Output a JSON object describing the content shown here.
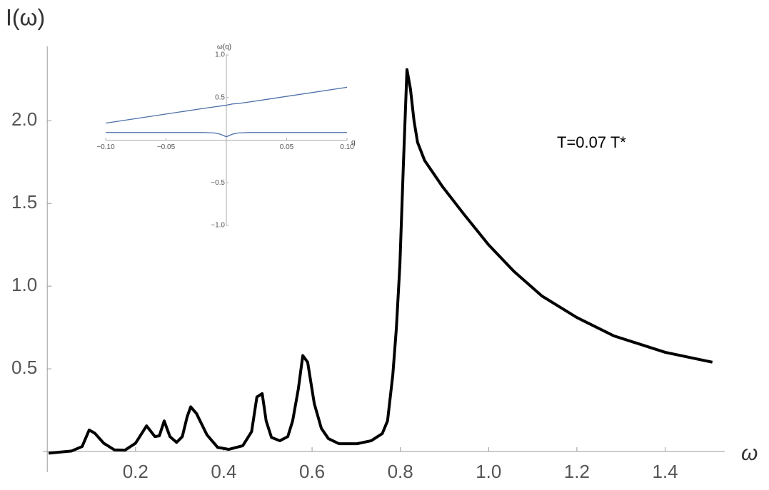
{
  "chart_data": [
    {
      "type": "line",
      "y_label": "I(ω)",
      "x_label": "ω",
      "annotation": "T=0.07 T*",
      "xlim": [
        -0.01,
        1.535
      ],
      "ylim": [
        -0.125,
        2.45
      ],
      "xticks": [
        0.2,
        0.4,
        0.6,
        0.8,
        {
          "value": 1.0,
          "label": "1.0"
        },
        1.2,
        1.4
      ],
      "yticks": [
        0.5,
        {
          "value": 1.0,
          "label": "1.0"
        },
        1.5,
        {
          "value": 2.0,
          "label": "2.0"
        }
      ],
      "color": "#000000",
      "x": [
        0.003,
        0.055,
        0.079,
        0.095,
        0.108,
        0.128,
        0.152,
        0.176,
        0.2,
        0.225,
        0.244,
        0.254,
        0.265,
        0.278,
        0.293,
        0.306,
        0.317,
        0.325,
        0.338,
        0.362,
        0.386,
        0.411,
        0.443,
        0.463,
        0.475,
        0.487,
        0.496,
        0.508,
        0.527,
        0.545,
        0.556,
        0.569,
        0.579,
        0.59,
        0.605,
        0.621,
        0.637,
        0.661,
        0.702,
        0.734,
        0.759,
        0.771,
        0.783,
        0.791,
        0.799,
        0.807,
        0.815,
        0.823,
        0.831,
        0.839,
        0.855,
        0.896,
        0.944,
        1.0,
        1.057,
        1.121,
        1.2,
        1.283,
        1.4,
        1.507
      ],
      "values": [
        -0.01,
        0.003,
        0.03,
        0.13,
        0.11,
        0.05,
        0.01,
        0.008,
        0.05,
        0.155,
        0.09,
        0.095,
        0.185,
        0.09,
        0.055,
        0.09,
        0.21,
        0.27,
        0.23,
        0.1,
        0.025,
        0.013,
        0.035,
        0.12,
        0.33,
        0.35,
        0.185,
        0.085,
        0.065,
        0.09,
        0.185,
        0.38,
        0.58,
        0.54,
        0.29,
        0.14,
        0.078,
        0.047,
        0.047,
        0.065,
        0.108,
        0.185,
        0.465,
        0.745,
        1.13,
        1.74,
        2.31,
        2.19,
        2.0,
        1.87,
        1.76,
        1.6,
        1.435,
        1.25,
        1.09,
        0.94,
        0.81,
        0.7,
        0.6,
        0.54
      ]
    },
    {
      "type": "line",
      "y_label": "ω(q)",
      "x_label": "q",
      "xlim": [
        -0.1,
        0.1
      ],
      "ylim": [
        -1,
        1
      ],
      "xticks": [
        {
          "value": -0.1,
          "label": "−0.10"
        },
        {
          "value": -0.05,
          "label": "−0.05"
        },
        {
          "value": 0.05,
          "label": "0.05"
        },
        {
          "value": 0.1,
          "label": "0.10"
        }
      ],
      "yticks": [
        {
          "value": -1,
          "label": "−1.0"
        },
        {
          "value": -0.5,
          "label": "−0.5"
        },
        0.5,
        {
          "value": 1,
          "label": "1.0"
        }
      ],
      "x": [
        -0.1,
        -0.02,
        -0.01,
        -0.005,
        0,
        0.005,
        0.01,
        0.02,
        0.1
      ],
      "series": [
        {
          "color": "#4a6fa8",
          "values": [
            0.2,
            0.37,
            0.39,
            0.4,
            0.41,
            0.425,
            0.43,
            0.45,
            0.62
          ]
        },
        {
          "color": "#4a6fa8",
          "values": [
            0.09,
            0.09,
            0.085,
            0.07,
            0.04,
            0.07,
            0.085,
            0.09,
            0.09
          ]
        }
      ]
    }
  ]
}
